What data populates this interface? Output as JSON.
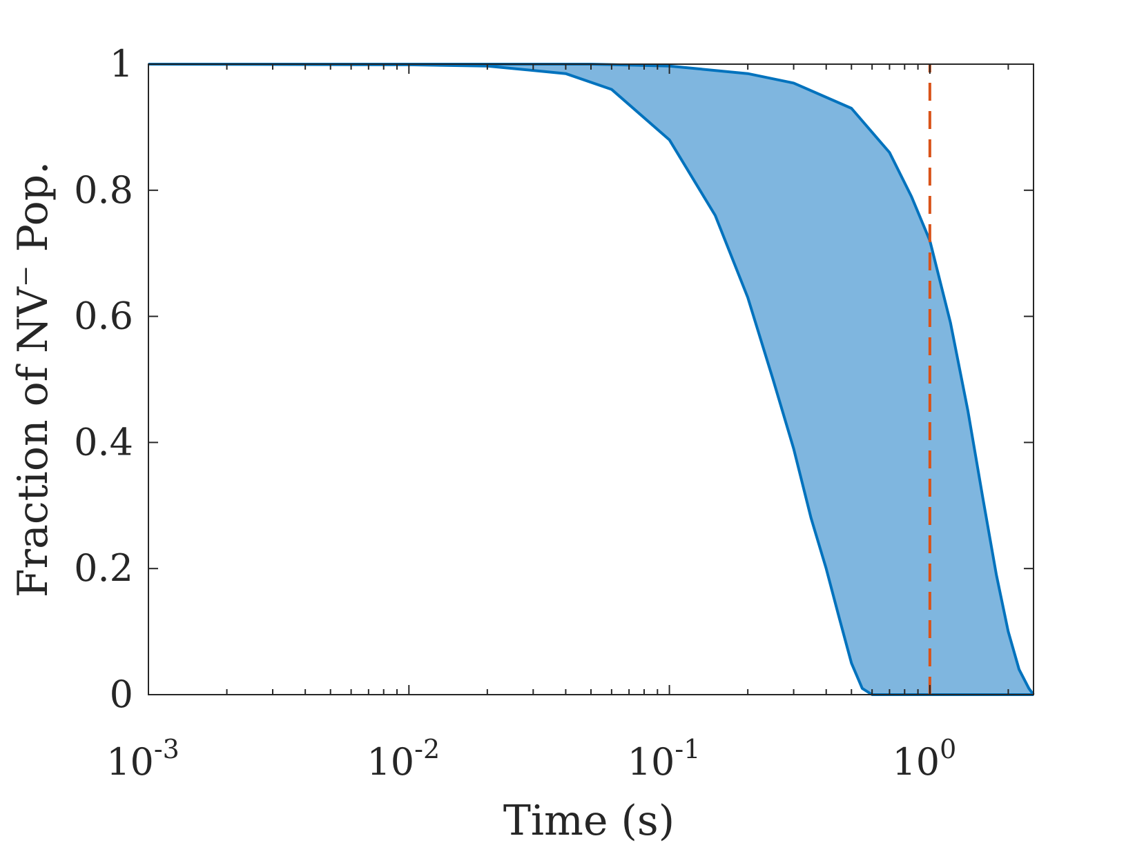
{
  "chart_data": {
    "type": "area",
    "title": "",
    "xlabel": "Time (s)",
    "ylabel": "Fraction of NV⁻ Pop.",
    "xscale": "log",
    "xlim": [
      0.001,
      2.5
    ],
    "ylim": [
      0,
      1
    ],
    "grid": false,
    "legend": "none",
    "x_ticks": [
      {
        "base": "10",
        "exp": "-3",
        "value": 0.001
      },
      {
        "base": "10",
        "exp": "-2",
        "value": 0.01
      },
      {
        "base": "10",
        "exp": "-1",
        "value": 0.1
      },
      {
        "base": "10",
        "exp": "0",
        "value": 1
      }
    ],
    "y_ticks": [
      {
        "label": "0",
        "value": 0
      },
      {
        "label": "0.2",
        "value": 0.2
      },
      {
        "label": "0.4",
        "value": 0.4
      },
      {
        "label": "0.6",
        "value": 0.6
      },
      {
        "label": "0.8",
        "value": 0.8
      },
      {
        "label": "1",
        "value": 1
      }
    ],
    "band": {
      "lower": {
        "x": [
          0.001,
          0.01,
          0.02,
          0.04,
          0.06,
          0.1,
          0.15,
          0.2,
          0.25,
          0.3,
          0.35,
          0.4,
          0.45,
          0.5,
          0.55,
          0.6,
          2.5
        ],
        "y": [
          1.0,
          0.999,
          0.997,
          0.985,
          0.96,
          0.88,
          0.76,
          0.63,
          0.5,
          0.39,
          0.28,
          0.2,
          0.12,
          0.05,
          0.01,
          0.0,
          0.0
        ]
      },
      "upper": {
        "x": [
          0.001,
          0.01,
          0.05,
          0.1,
          0.2,
          0.3,
          0.5,
          0.7,
          0.85,
          1.0,
          1.2,
          1.4,
          1.6,
          1.8,
          2.0,
          2.2,
          2.4,
          2.5
        ],
        "y": [
          1.0,
          1.0,
          1.0,
          0.997,
          0.985,
          0.97,
          0.93,
          0.86,
          0.79,
          0.72,
          0.59,
          0.45,
          0.31,
          0.19,
          0.1,
          0.04,
          0.01,
          0.0
        ]
      }
    },
    "vline": {
      "x": 1.0,
      "y_from": 0,
      "y_to": 1,
      "style": "dashed"
    },
    "colors": {
      "band_fill": "#7fb6df",
      "band_edge": "#0072bd",
      "vline": "#d95319",
      "axes": "#262626"
    }
  }
}
